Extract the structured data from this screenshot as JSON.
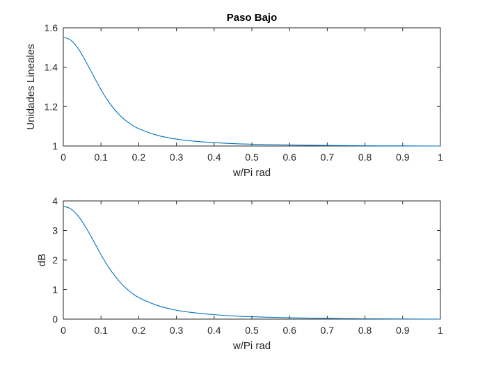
{
  "chart_data": [
    {
      "type": "line",
      "title": "Paso Bajo",
      "xlabel": "w/Pi rad",
      "ylabel": "Unidades Lineales",
      "xlim": [
        0,
        1
      ],
      "ylim": [
        1,
        1.6
      ],
      "xticks": [
        "0",
        "0.1",
        "0.2",
        "0.3",
        "0.4",
        "0.5",
        "0.6",
        "0.7",
        "0.8",
        "0.9",
        "1"
      ],
      "yticks": [
        "1",
        "1.2",
        "1.4",
        "1.6"
      ],
      "grid": false,
      "line_color": "#0072BD",
      "x": [
        0,
        0.02,
        0.04,
        0.06,
        0.08,
        0.1,
        0.12,
        0.14,
        0.16,
        0.18,
        0.2,
        0.25,
        0.3,
        0.35,
        0.4,
        0.45,
        0.5,
        0.6,
        0.7,
        0.8,
        0.9,
        1.0
      ],
      "y": [
        1.553,
        1.537,
        1.493,
        1.428,
        1.356,
        1.286,
        1.225,
        1.176,
        1.138,
        1.11,
        1.088,
        1.054,
        1.035,
        1.024,
        1.017,
        1.012,
        1.009,
        1.005,
        1.003,
        1.001,
        1.0005,
        1.0
      ]
    },
    {
      "type": "line",
      "title": "",
      "xlabel": "w/Pi rad",
      "ylabel": "dB",
      "xlim": [
        0,
        1
      ],
      "ylim": [
        0,
        4
      ],
      "xticks": [
        "0",
        "0.1",
        "0.2",
        "0.3",
        "0.4",
        "0.5",
        "0.6",
        "0.7",
        "0.8",
        "0.9",
        "1"
      ],
      "yticks": [
        "0",
        "1",
        "2",
        "3",
        "4"
      ],
      "grid": false,
      "line_color": "#0072BD",
      "x": [
        0,
        0.02,
        0.04,
        0.06,
        0.08,
        0.1,
        0.12,
        0.14,
        0.16,
        0.18,
        0.2,
        0.25,
        0.3,
        0.35,
        0.4,
        0.45,
        0.5,
        0.6,
        0.7,
        0.8,
        0.9,
        1.0
      ],
      "y": [
        3.82,
        3.73,
        3.48,
        3.1,
        2.65,
        2.18,
        1.76,
        1.41,
        1.12,
        0.9,
        0.73,
        0.46,
        0.3,
        0.21,
        0.15,
        0.11,
        0.08,
        0.045,
        0.025,
        0.012,
        0.005,
        0.0
      ]
    }
  ]
}
